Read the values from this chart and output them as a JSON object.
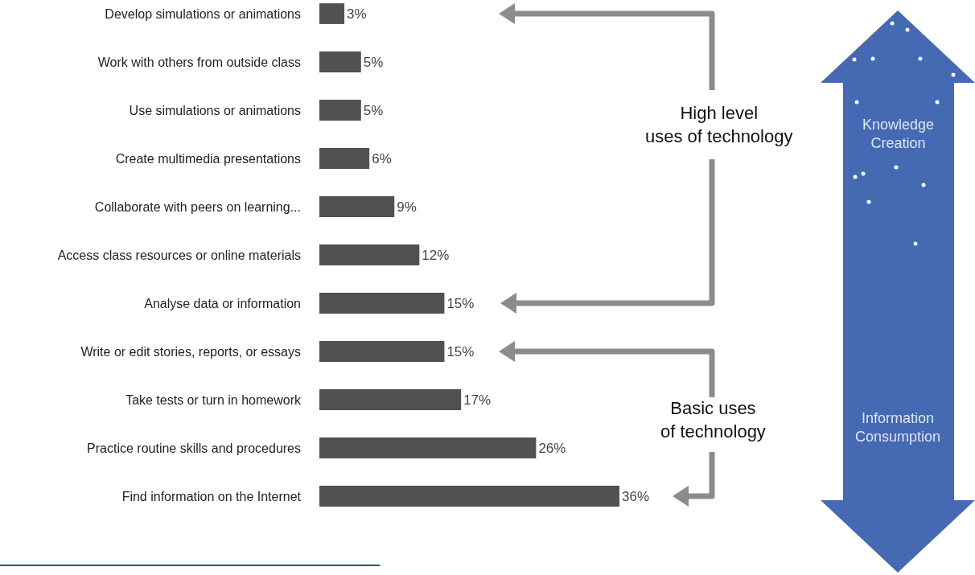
{
  "chart_data": {
    "type": "bar",
    "orientation": "horizontal",
    "categories": [
      "Develop simulations or animations",
      "Work with others from outside class",
      "Use simulations or animations",
      "Create multimedia presentations",
      "Collaborate with peers on learning...",
      "Access class resources or online materials",
      "Analyse data or information",
      "Write or edit stories, reports, or essays",
      "Take tests or turn in homework",
      "Practice routine skills and procedures",
      "Find information on the Internet"
    ],
    "values": [
      3,
      5,
      5,
      6,
      9,
      12,
      15,
      15,
      17,
      26,
      36
    ],
    "value_labels": [
      "3%",
      "5%",
      "5%",
      "6%",
      "9%",
      "12%",
      "15%",
      "15%",
      "17%",
      "26%",
      "36%"
    ],
    "color": "#535051",
    "grid": false,
    "tick_labels": "y",
    "annotations": [
      "High level\nuses of technology",
      "Basic uses\nof technology",
      "Knowledge\nCreation",
      "Information\nConsumption"
    ]
  }
}
